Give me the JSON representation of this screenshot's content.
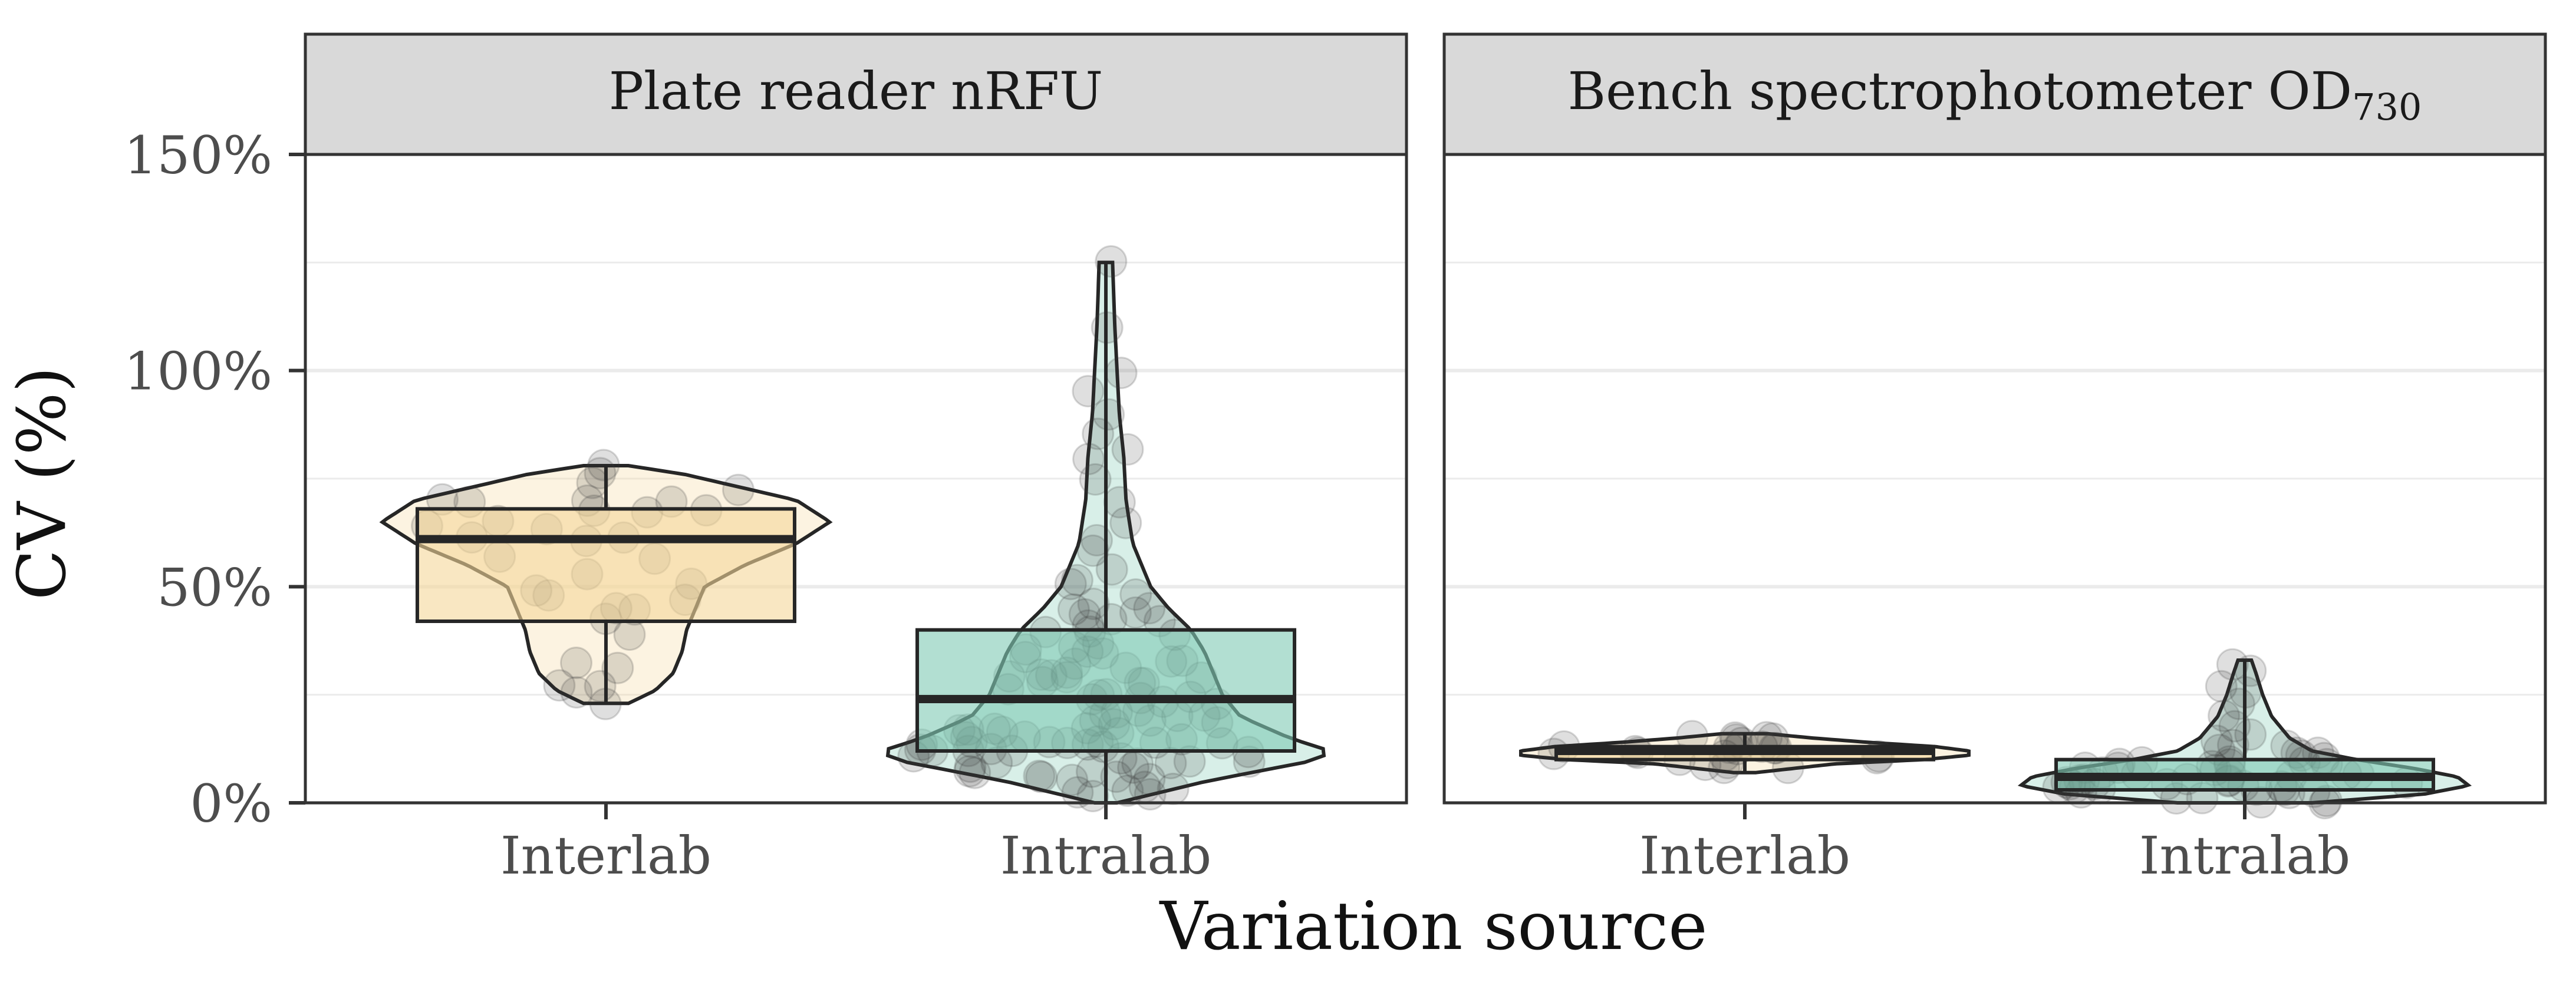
{
  "chart_data": {
    "type": "violin",
    "ylabel": "CV (%)",
    "xlabel": "Variation source",
    "y_ticks": [
      "0%",
      "50%",
      "100%",
      "150%"
    ],
    "y_tick_values": [
      0,
      50,
      100,
      150
    ],
    "ylim": [
      0,
      150
    ],
    "grid": true,
    "legend": "none",
    "categories": [
      "Interlab",
      "Intralab"
    ],
    "colors": {
      "Interlab": "#f5d79a",
      "Intralab": "#7fcab4"
    },
    "panels": [
      {
        "title": "Plate reader nRFU",
        "title_subscript": "",
        "groups": [
          {
            "name": "Interlab",
            "box": {
              "q1": 42,
              "median": 61,
              "q3": 68,
              "min": 23,
              "max": 78
            },
            "violin": [
              [
                23,
                0.1
              ],
              [
                26,
                0.22
              ],
              [
                30,
                0.3
              ],
              [
                35,
                0.34
              ],
              [
                40,
                0.36
              ],
              [
                45,
                0.4
              ],
              [
                50,
                0.44
              ],
              [
                55,
                0.62
              ],
              [
                60,
                0.85
              ],
              [
                65,
                1.0
              ],
              [
                70,
                0.85
              ],
              [
                73,
                0.6
              ],
              [
                76,
                0.35
              ],
              [
                78,
                0.1
              ]
            ],
            "points": [
              23,
              25,
              27,
              28,
              31,
              33,
              38,
              42,
              44,
              45,
              47,
              48,
              49,
              50,
              53,
              56,
              58,
              60,
              61,
              62,
              63,
              65,
              66,
              67,
              67,
              68,
              69,
              69,
              70,
              70,
              72,
              74,
              77,
              78
            ]
          },
          {
            "name": "Intralab",
            "box": {
              "q1": 12,
              "median": 24,
              "q3": 40,
              "min": 0,
              "max": 125
            },
            "violin": [
              [
                0,
                0.05
              ],
              [
                5,
                0.45
              ],
              [
                10,
                0.95
              ],
              [
                12,
                1.0
              ],
              [
                15,
                0.82
              ],
              [
                20,
                0.6
              ],
              [
                25,
                0.52
              ],
              [
                30,
                0.48
              ],
              [
                35,
                0.44
              ],
              [
                40,
                0.38
              ],
              [
                45,
                0.28
              ],
              [
                50,
                0.2
              ],
              [
                55,
                0.16
              ],
              [
                60,
                0.12
              ],
              [
                70,
                0.09
              ],
              [
                80,
                0.08
              ],
              [
                90,
                0.06
              ],
              [
                100,
                0.05
              ],
              [
                110,
                0.04
              ],
              [
                125,
                0.03
              ]
            ],
            "points": [
              1,
              2,
              3,
              3,
              4,
              4,
              5,
              5,
              6,
              6,
              7,
              7,
              8,
              8,
              8,
              9,
              9,
              9,
              10,
              10,
              10,
              10,
              11,
              11,
              11,
              11,
              12,
              12,
              12,
              12,
              13,
              13,
              13,
              13,
              14,
              14,
              14,
              15,
              15,
              15,
              16,
              16,
              16,
              17,
              17,
              17,
              18,
              18,
              19,
              19,
              20,
              20,
              21,
              21,
              22,
              22,
              23,
              23,
              24,
              24,
              25,
              25,
              26,
              26,
              27,
              27,
              28,
              28,
              29,
              29,
              30,
              30,
              31,
              31,
              32,
              32,
              33,
              33,
              34,
              35,
              35,
              36,
              37,
              38,
              39,
              40,
              40,
              41,
              42,
              43,
              44,
              45,
              46,
              47,
              48,
              50,
              52,
              55,
              58,
              60,
              65,
              70,
              75,
              80,
              82,
              85,
              90,
              95,
              100,
              110,
              125
            ]
          }
        ]
      },
      {
        "title": "Bench spectrophotometer OD",
        "title_subscript": "730",
        "groups": [
          {
            "name": "Interlab",
            "box": {
              "q1": 10,
              "median": 12,
              "q3": 13,
              "min": 7,
              "max": 16
            },
            "violin": [
              [
                7,
                0.05
              ],
              [
                9,
                0.4
              ],
              [
                10,
                0.8
              ],
              [
                11,
                1.0
              ],
              [
                12,
                1.0
              ],
              [
                13,
                0.85
              ],
              [
                14,
                0.55
              ],
              [
                15,
                0.3
              ],
              [
                16,
                0.1
              ]
            ],
            "points": [
              8,
              9,
              9,
              10,
              10,
              10,
              11,
              11,
              11,
              11,
              12,
              12,
              12,
              12,
              12,
              13,
              13,
              13,
              14,
              14,
              15,
              15,
              16
            ]
          },
          {
            "name": "Intralab",
            "box": {
              "q1": 3,
              "median": 6,
              "q3": 10,
              "min": 0,
              "max": 33
            },
            "violin": [
              [
                0,
                0.3
              ],
              [
                2,
                0.8
              ],
              [
                4,
                1.0
              ],
              [
                6,
                0.95
              ],
              [
                8,
                0.75
              ],
              [
                10,
                0.5
              ],
              [
                12,
                0.3
              ],
              [
                15,
                0.2
              ],
              [
                20,
                0.12
              ],
              [
                25,
                0.08
              ],
              [
                30,
                0.05
              ],
              [
                33,
                0.03
              ]
            ],
            "points": [
              0,
              1,
              1,
              1,
              2,
              2,
              2,
              2,
              3,
              3,
              3,
              3,
              3,
              4,
              4,
              4,
              4,
              4,
              5,
              5,
              5,
              5,
              5,
              6,
              6,
              6,
              6,
              6,
              7,
              7,
              7,
              7,
              8,
              8,
              8,
              8,
              9,
              9,
              9,
              10,
              10,
              10,
              11,
              11,
              12,
              12,
              13,
              14,
              15,
              16,
              18,
              20,
              22,
              25,
              28,
              30,
              33
            ]
          }
        ]
      }
    ]
  }
}
